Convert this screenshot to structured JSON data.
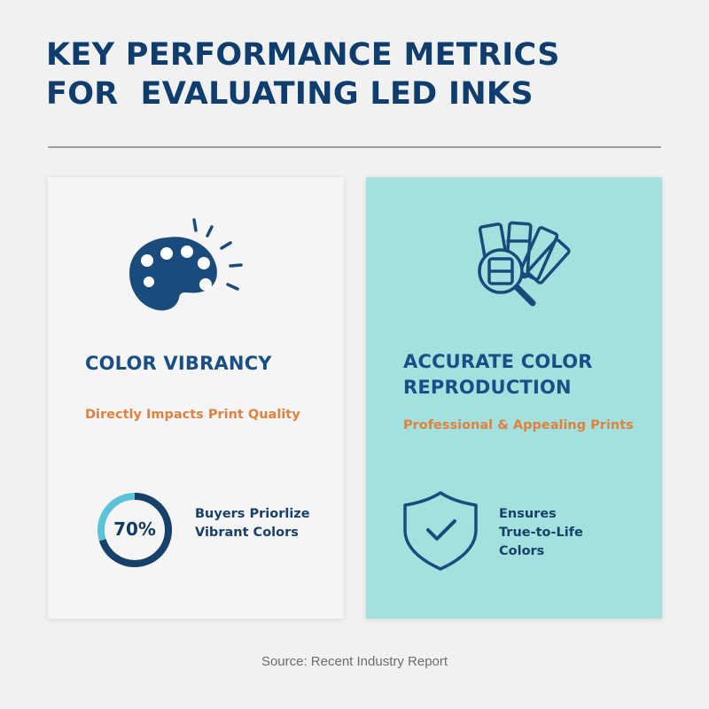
{
  "header": {
    "title": "KEY PERFORMANCE METRICS\nFOR  EVALUATING LED INKS"
  },
  "cards": [
    {
      "icon": "paint-palette-icon",
      "title": "COLOR VIBRANCY",
      "subtitle": "Directly Impacts Print Quality",
      "stat": {
        "value_label": "70%",
        "value": 70,
        "lines": [
          "Buyers Priorlize",
          "Vibrant Colors"
        ]
      }
    },
    {
      "icon": "color-swatch-magnifier-icon",
      "title": "ACCURATE COLOR\nREPRODUCTION",
      "subtitle": "Professional & Appealing Prints",
      "stat": {
        "icon": "shield-check-icon",
        "lines": [
          "Ensures",
          "True-to-Life",
          "Colors"
        ]
      }
    }
  ],
  "footer": {
    "source": "Source: Recent Industry Report"
  },
  "colors": {
    "navy": "#0f3d6e",
    "title_blue": "#184f86",
    "orange": "#e0813d",
    "teal_card": "#a2e1dd",
    "ring_light": "#5bc2d8"
  }
}
